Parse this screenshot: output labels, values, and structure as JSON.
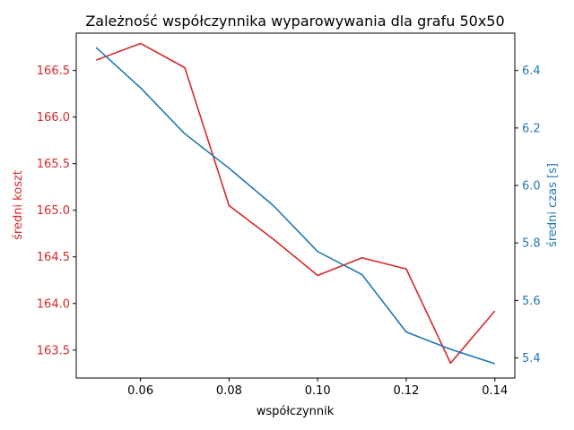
{
  "chart_data": {
    "type": "line",
    "title": "Zależność współczynnika wyparowywania dla grafu 50x50",
    "xlabel": "współczynnik",
    "ylabel_left": "średni koszt",
    "ylabel_right": "średni czas [s]",
    "x": [
      0.05,
      0.06,
      0.07,
      0.08,
      0.09,
      0.1,
      0.11,
      0.12,
      0.13,
      0.14
    ],
    "xlim": [
      0.0455,
      0.1445
    ],
    "x_ticks": [
      "0.06",
      "0.08",
      "0.10",
      "0.12",
      "0.14"
    ],
    "series": [
      {
        "axis": "left",
        "color": "#d62728",
        "values": [
          166.61,
          166.79,
          166.53,
          165.05,
          164.69,
          164.3,
          164.49,
          164.37,
          163.36,
          163.92
        ]
      },
      {
        "axis": "right",
        "color": "#1f77b4",
        "values": [
          6.48,
          6.34,
          6.18,
          6.06,
          5.93,
          5.77,
          5.69,
          5.49,
          5.43,
          5.38
        ]
      }
    ],
    "ylim_left": [
      163.2,
      166.9
    ],
    "ylim_right": [
      5.33,
      6.53
    ],
    "y_ticks_left": [
      "163.5",
      "164.0",
      "164.5",
      "165.0",
      "165.5",
      "166.0",
      "166.5"
    ],
    "y_ticks_right": [
      "5.4",
      "5.6",
      "5.8",
      "6.0",
      "6.2",
      "6.4"
    ],
    "left_axis_color": "#d62728",
    "right_axis_color": "#1f77b4",
    "grid": false,
    "legend": "none"
  }
}
